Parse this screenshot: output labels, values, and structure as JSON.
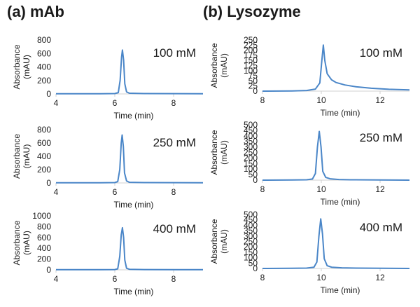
{
  "panels": {
    "a": {
      "title": "(a) mAb"
    },
    "b": {
      "title": "(b) Lysozyme"
    }
  },
  "series_color": "#4a86c8",
  "chart_data": [
    {
      "type": "line",
      "panel": "(a) mAb",
      "label": "100 mM",
      "xlabel": "Time (min)",
      "ylabel": [
        "Absorbance",
        "(mAU)"
      ],
      "xlim": [
        4,
        9
      ],
      "ylim": [
        0,
        800
      ],
      "xticks": [
        4,
        6,
        8
      ],
      "yticks": [
        0,
        200,
        400,
        600,
        800
      ],
      "x": [
        4.0,
        5.5,
        6.0,
        6.12,
        6.18,
        6.23,
        6.26,
        6.3,
        6.34,
        6.4,
        6.5,
        7.0,
        9.0
      ],
      "y": [
        2,
        3,
        5,
        20,
        200,
        550,
        650,
        500,
        150,
        30,
        10,
        5,
        3
      ]
    },
    {
      "type": "line",
      "panel": "(a) mAb",
      "label": "250 mM",
      "xlabel": "Time (min)",
      "ylabel": [
        "Absorbance",
        "(mAU)"
      ],
      "xlim": [
        4,
        9
      ],
      "ylim": [
        0,
        800
      ],
      "xticks": [
        4,
        6,
        8
      ],
      "yticks": [
        0,
        200,
        400,
        600,
        800
      ],
      "x": [
        4.0,
        5.5,
        6.0,
        6.1,
        6.17,
        6.22,
        6.25,
        6.29,
        6.33,
        6.4,
        6.5,
        7.0,
        9.0
      ],
      "y": [
        2,
        3,
        5,
        20,
        200,
        600,
        720,
        550,
        150,
        30,
        10,
        5,
        3
      ]
    },
    {
      "type": "line",
      "panel": "(a) mAb",
      "label": "400 mM",
      "xlabel": "Time (min)",
      "ylabel": [
        "Absorbance",
        "(mAU)"
      ],
      "xlim": [
        4,
        9
      ],
      "ylim": [
        0,
        1000
      ],
      "xticks": [
        4,
        6,
        8
      ],
      "yticks": [
        0,
        200,
        400,
        600,
        800,
        1000
      ],
      "x": [
        4.0,
        5.5,
        6.0,
        6.1,
        6.17,
        6.22,
        6.26,
        6.3,
        6.34,
        6.4,
        6.5,
        7.0,
        9.0
      ],
      "y": [
        2,
        3,
        5,
        20,
        250,
        650,
        780,
        600,
        180,
        30,
        10,
        5,
        3
      ]
    },
    {
      "type": "line",
      "panel": "(b) Lysozyme",
      "label": "100 mM",
      "xlabel": "Time (min)",
      "ylabel": [
        "Absorbance",
        "(mAU)"
      ],
      "xlim": [
        8,
        13
      ],
      "ylim": [
        0,
        250
      ],
      "xticks": [
        8,
        10,
        12
      ],
      "yticks": [
        0,
        25,
        50,
        75,
        100,
        125,
        150,
        175,
        200,
        225,
        250
      ],
      "x": [
        8.0,
        9.0,
        9.5,
        9.8,
        9.95,
        10.02,
        10.07,
        10.12,
        10.2,
        10.35,
        10.5,
        10.8,
        11.2,
        11.7,
        12.3,
        13.0
      ],
      "y": [
        0,
        1,
        3,
        10,
        40,
        150,
        225,
        150,
        85,
        55,
        42,
        30,
        21,
        14,
        9,
        6
      ]
    },
    {
      "type": "line",
      "panel": "(b) Lysozyme",
      "label": "250 mM",
      "xlabel": "Time (min)",
      "ylabel": [
        "Absorbance",
        "(mAU)"
      ],
      "xlim": [
        8,
        13
      ],
      "ylim": [
        0,
        500
      ],
      "xticks": [
        8,
        10,
        12
      ],
      "yticks": [
        0,
        50,
        100,
        150,
        200,
        250,
        300,
        350,
        400,
        450,
        500
      ],
      "x": [
        8.0,
        9.0,
        9.5,
        9.7,
        9.8,
        9.87,
        9.93,
        9.99,
        10.05,
        10.15,
        10.3,
        10.6,
        11.0,
        13.0
      ],
      "y": [
        0,
        1,
        3,
        10,
        60,
        300,
        440,
        300,
        80,
        25,
        12,
        6,
        3,
        0
      ]
    },
    {
      "type": "line",
      "panel": "(b) Lysozyme",
      "label": "400 mM",
      "xlabel": "Time (min)",
      "ylabel": [
        "Absorbance",
        "(mAU)"
      ],
      "xlim": [
        8,
        13
      ],
      "ylim": [
        0,
        500
      ],
      "xticks": [
        8,
        10,
        12
      ],
      "yticks": [
        0,
        50,
        100,
        150,
        200,
        250,
        300,
        350,
        400,
        450,
        500
      ],
      "x": [
        8.0,
        9.0,
        9.5,
        9.75,
        9.85,
        9.92,
        9.98,
        10.04,
        10.1,
        10.2,
        10.35,
        10.7,
        11.2,
        13.0
      ],
      "y": [
        0,
        1,
        3,
        12,
        60,
        300,
        460,
        320,
        90,
        25,
        12,
        6,
        3,
        0
      ]
    }
  ]
}
